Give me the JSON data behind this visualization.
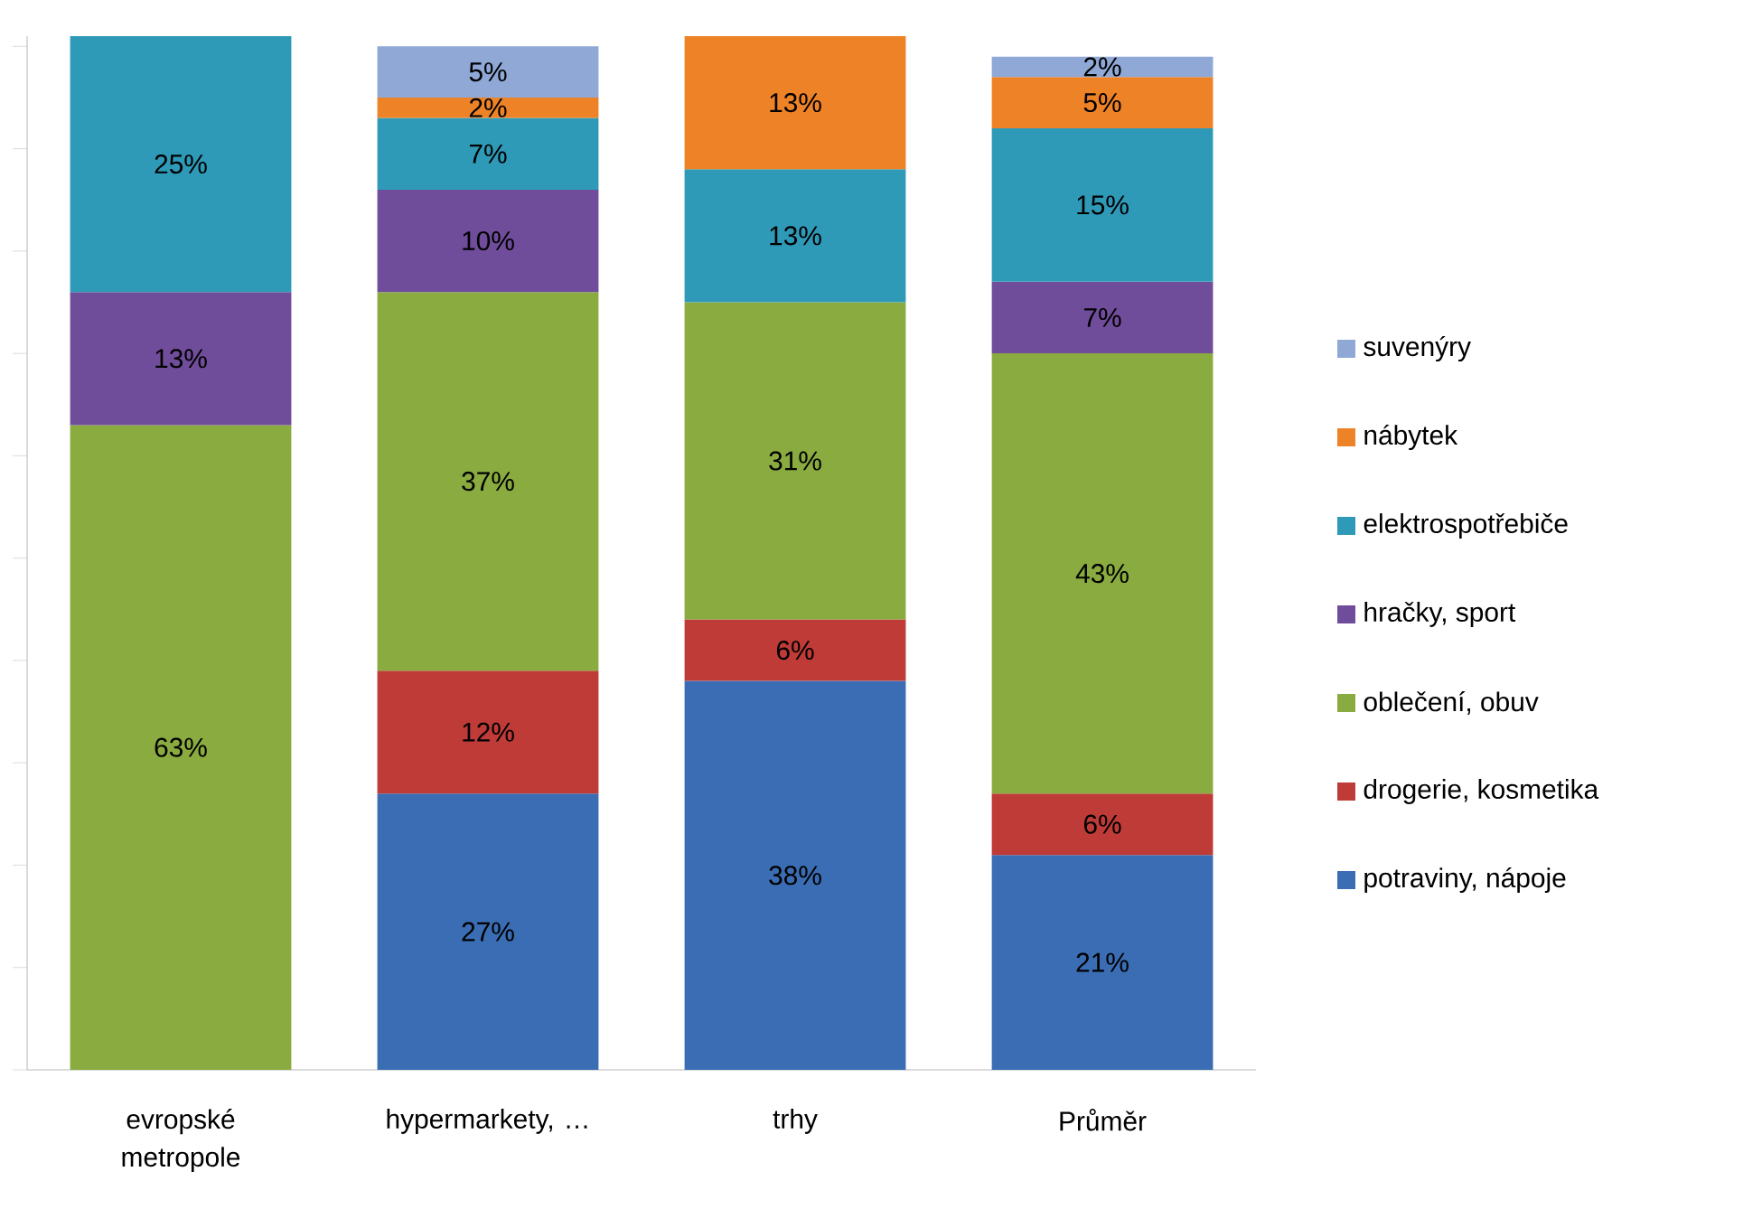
{
  "chart_data": {
    "type": "bar",
    "stacked": true,
    "categories": [
      "evropské metropole",
      "hypermarkety, …",
      "trhy",
      "Průměr"
    ],
    "series": [
      {
        "name": "potraviny, nápoje",
        "color": "#3a6db3",
        "values": [
          null,
          27,
          38,
          21
        ],
        "value_labels": [
          null,
          "27%",
          "38%",
          "21%"
        ]
      },
      {
        "name": "drogerie, kosmetika",
        "color": "#be3b37",
        "values": [
          null,
          12,
          6,
          6
        ],
        "value_labels": [
          null,
          "12%",
          "6%",
          "6%"
        ]
      },
      {
        "name": "oblečení, obuv",
        "color": "#8aab3f",
        "values": [
          63,
          37,
          31,
          43
        ],
        "value_labels": [
          "63%",
          "37%",
          "31%",
          "43%"
        ]
      },
      {
        "name": "hračky, sport",
        "color": "#704d9a",
        "values": [
          13,
          10,
          null,
          7
        ],
        "value_labels": [
          "13%",
          "10%",
          null,
          "7%"
        ]
      },
      {
        "name": "elektrospotřebiče",
        "color": "#2f9ab8",
        "values": [
          25,
          7,
          13,
          15
        ],
        "value_labels": [
          "25%",
          "7%",
          "13%",
          "15%"
        ]
      },
      {
        "name": "nábytek",
        "color": "#ee8227",
        "values": [
          null,
          2,
          13,
          5
        ],
        "value_labels": [
          null,
          "2%",
          "13%",
          "5%"
        ]
      },
      {
        "name": "suvenýry",
        "color": "#8fa8d6",
        "values": [
          null,
          5,
          null,
          2
        ],
        "value_labels": [
          null,
          "5%",
          null,
          "2%"
        ]
      }
    ],
    "ylim": [
      0,
      101
    ],
    "yticks": [
      {
        "value": 0,
        "label": null
      },
      {
        "value": 10,
        "label": null
      },
      {
        "value": 20,
        "label": null
      },
      {
        "value": 30,
        "label": null
      },
      {
        "value": 40,
        "label": null
      },
      {
        "value": 50,
        "label": null
      },
      {
        "value": 60,
        "label": null
      },
      {
        "value": 70,
        "label": null
      },
      {
        "value": 80,
        "label": null
      },
      {
        "value": 90,
        "label": null
      },
      {
        "value": 100,
        "label": null
      }
    ],
    "tick_labels": "x",
    "legend": "right"
  }
}
